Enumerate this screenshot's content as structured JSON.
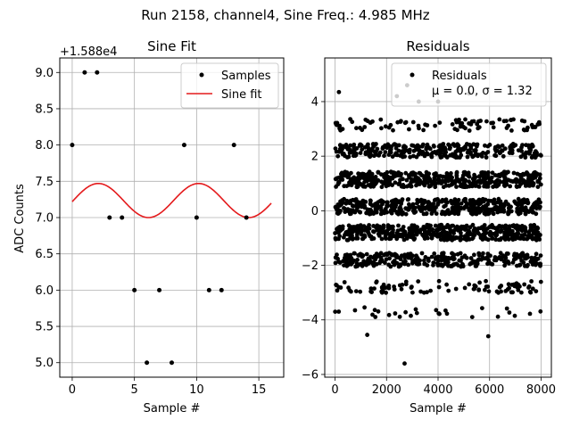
{
  "figure": {
    "suptitle": "Run 2158, channel4, Sine Freq.: 4.985 MHz"
  },
  "chart_data": [
    {
      "type": "scatter",
      "title": "Sine Fit",
      "xlabel": "Sample #",
      "ylabel": "ADC Counts",
      "offset_label": "+1.588e4",
      "xlim": [
        -1,
        17
      ],
      "ylim": [
        4.8,
        9.2
      ],
      "xticks": [
        0,
        5,
        10,
        15
      ],
      "yticks": [
        5.0,
        5.5,
        6.0,
        6.5,
        7.0,
        7.5,
        8.0,
        8.5,
        9.0
      ],
      "xtick_labels": [
        "0",
        "5",
        "10",
        "15"
      ],
      "ytick_labels": [
        "5.0",
        "5.5",
        "6.0",
        "6.5",
        "7.0",
        "7.5",
        "8.0",
        "8.5",
        "9.0"
      ],
      "grid": true,
      "legend_position": "top-right",
      "series": [
        {
          "name": "Samples",
          "kind": "scatter",
          "color": "#000000",
          "x": [
            0,
            1,
            2,
            3,
            4,
            5,
            6,
            7,
            8,
            9,
            10,
            11,
            12,
            13,
            14
          ],
          "y": [
            8.0,
            9.0,
            9.0,
            7.0,
            7.0,
            6.0,
            5.0,
            6.0,
            5.0,
            8.0,
            7.0,
            6.0,
            6.0,
            8.0,
            7.0
          ]
        },
        {
          "name": "Sine fit",
          "kind": "line",
          "color": "#e41a1c",
          "model": {
            "offset": 7.235,
            "amplitude": 0.235,
            "period": 8.06,
            "peak_x": 2.1,
            "x_range": [
              0,
              16
            ]
          }
        }
      ]
    },
    {
      "type": "scatter",
      "title": "Residuals",
      "xlabel": "Sample #",
      "ylabel": "",
      "xlim": [
        -400,
        8400
      ],
      "ylim": [
        -6.1,
        5.6
      ],
      "xticks": [
        0,
        2000,
        4000,
        6000,
        8000
      ],
      "yticks": [
        -6,
        -4,
        -2,
        0,
        2,
        4
      ],
      "xtick_labels": [
        "0",
        "2000",
        "4000",
        "6000",
        "8000"
      ],
      "ytick_labels": [
        "−6",
        "−4",
        "−2",
        "0",
        "2",
        "4"
      ],
      "grid": true,
      "legend_position": "top-right",
      "legend_label": "Residuals",
      "legend_stats": "μ = 0.0, σ = 1.32",
      "series": [
        {
          "name": "Residuals",
          "kind": "scatter",
          "color": "#000000",
          "n_samples": 8000,
          "bands": [
            {
              "center": 0.15,
              "spread": 0.28,
              "density": "very dense"
            },
            {
              "center": 1.15,
              "spread": 0.28,
              "density": "very dense"
            },
            {
              "center": -0.8,
              "spread": 0.28,
              "density": "very dense"
            },
            {
              "center": 2.2,
              "spread": 0.25,
              "density": "dense"
            },
            {
              "center": -1.8,
              "spread": 0.25,
              "density": "dense"
            },
            {
              "center": 3.15,
              "spread": 0.22,
              "density": "medium"
            },
            {
              "center": -2.8,
              "spread": 0.22,
              "density": "medium"
            },
            {
              "center": -3.7,
              "spread": 0.2,
              "density": "sparse"
            }
          ],
          "outliers": [
            {
              "x": 150,
              "y": 4.35
            },
            {
              "x": 1250,
              "y": -4.55
            },
            {
              "x": 2400,
              "y": 4.2
            },
            {
              "x": 2800,
              "y": 4.6
            },
            {
              "x": 3250,
              "y": 4.0
            },
            {
              "x": 4000,
              "y": 4.0
            },
            {
              "x": 5950,
              "y": -4.6
            },
            {
              "x": 2700,
              "y": -5.6
            },
            {
              "x": 5200,
              "y": 4.3
            }
          ]
        }
      ]
    }
  ]
}
